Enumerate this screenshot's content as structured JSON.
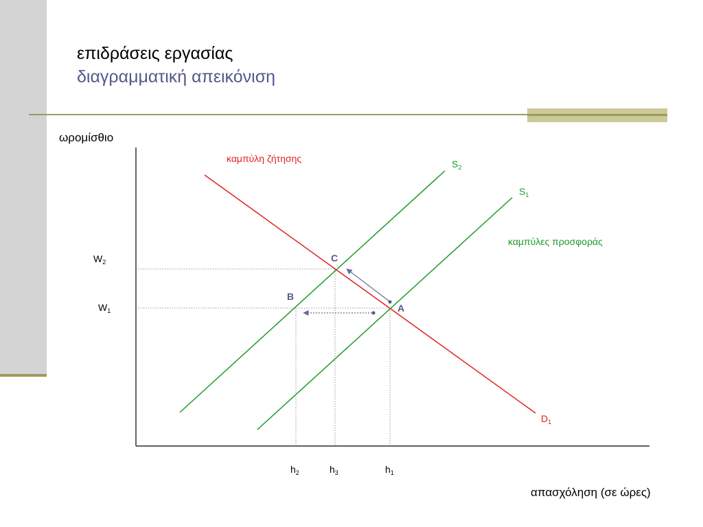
{
  "slide": {
    "title": "επιδράσεις εργασίας",
    "subtitle": "διαγραμματική απεικόνιση"
  },
  "diagram": {
    "y_axis_label": "ωρομίσθιο",
    "x_axis_label": "απασχόληση (σε ώρες)",
    "demand_label": "καμπύλη ζήτησης",
    "supply_label": "καμπύλες προσφοράς",
    "curves": {
      "s2": {
        "base": "S",
        "sub": "2"
      },
      "s1": {
        "base": "S",
        "sub": "1"
      },
      "d1": {
        "base": "D",
        "sub": "1"
      }
    },
    "wage_levels": {
      "w2": {
        "base": "W",
        "sub": "2"
      },
      "w1": {
        "base": "W",
        "sub": "1"
      }
    },
    "hours": {
      "h2": {
        "base": "h",
        "sub": "2"
      },
      "h3": {
        "base": "h",
        "sub": "3"
      },
      "h1": {
        "base": "h",
        "sub": "1"
      }
    },
    "points": {
      "a": "A",
      "b": "B",
      "c": "C"
    },
    "colors": {
      "demand": "#e0201f",
      "supply": "#1a9a2a",
      "points": "#54588a",
      "arrows": "#6a6a9a",
      "accent": "#9c9a5c"
    }
  }
}
